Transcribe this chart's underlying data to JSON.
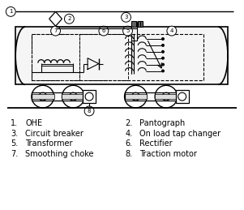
{
  "bg_color": "#ffffff",
  "line_color": "#000000",
  "labels_left": [
    {
      "num": "1.",
      "text": "OHE"
    },
    {
      "num": "3.",
      "text": "Circuit breaker"
    },
    {
      "num": "5.",
      "text": "Transformer"
    },
    {
      "num": "7.",
      "text": "Smoothing choke"
    }
  ],
  "labels_right": [
    {
      "num": "2.",
      "text": "Pantograph"
    },
    {
      "num": "4.",
      "text": "On load tap changer"
    },
    {
      "num": "6.",
      "text": "Rectifier"
    },
    {
      "num": "8.",
      "text": "Traction motor"
    }
  ],
  "font_size_label": 7.0
}
